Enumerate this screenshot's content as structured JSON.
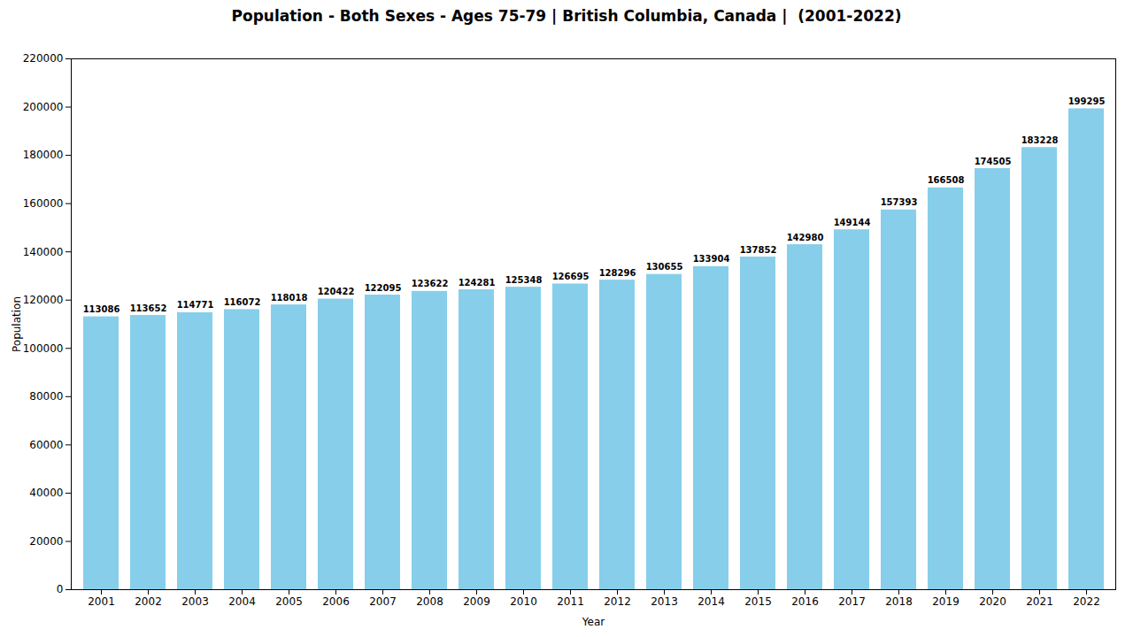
{
  "chart_data": {
    "type": "bar",
    "title": "Population - Both Sexes - Ages 75-79 | British Columbia, Canada |  (2001-2022)",
    "xlabel": "Year",
    "ylabel": "Population",
    "categories": [
      "2001",
      "2002",
      "2003",
      "2004",
      "2005",
      "2006",
      "2007",
      "2008",
      "2009",
      "2010",
      "2011",
      "2012",
      "2013",
      "2014",
      "2015",
      "2016",
      "2017",
      "2018",
      "2019",
      "2020",
      "2021",
      "2022"
    ],
    "values": [
      113086,
      113652,
      114771,
      116072,
      118018,
      120422,
      122095,
      123622,
      124281,
      125348,
      126695,
      128296,
      130655,
      133904,
      137852,
      142980,
      149144,
      157393,
      166508,
      174505,
      183228,
      199295
    ],
    "color": "#87ceeb",
    "ylim": [
      0,
      220000
    ],
    "yticks": [
      0,
      20000,
      40000,
      60000,
      80000,
      100000,
      120000,
      140000,
      160000,
      180000,
      200000,
      220000
    ],
    "grid": false,
    "data_labels": true
  }
}
